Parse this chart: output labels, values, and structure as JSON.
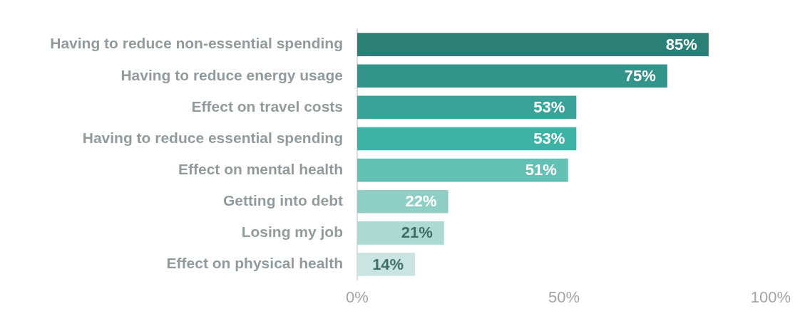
{
  "chart_data": {
    "type": "bar",
    "orientation": "horizontal",
    "categories": [
      "Having to reduce non-essential spending",
      "Having to reduce energy usage",
      "Effect on travel costs",
      "Having to reduce essential spending",
      "Effect on mental health",
      "Getting into debt",
      "Losing my job",
      "Effect on physical health"
    ],
    "values": [
      85,
      75,
      53,
      53,
      51,
      22,
      21,
      14
    ],
    "colors": [
      "#2a7f76",
      "#32948a",
      "#3aa399",
      "#3db3a6",
      "#62c0b4",
      "#8fcec5",
      "#acd9d2",
      "#c8e5e1"
    ],
    "value_labels": [
      "85%",
      "75%",
      "53%",
      "53%",
      "51%",
      "22%",
      "21%",
      "14%"
    ],
    "xlim": [
      0,
      100
    ],
    "xticks": [
      {
        "value": 0,
        "label": "0%"
      },
      {
        "value": 50,
        "label": "50%"
      },
      {
        "value": 100,
        "label": "100%"
      }
    ],
    "grid": false,
    "legend": false
  }
}
